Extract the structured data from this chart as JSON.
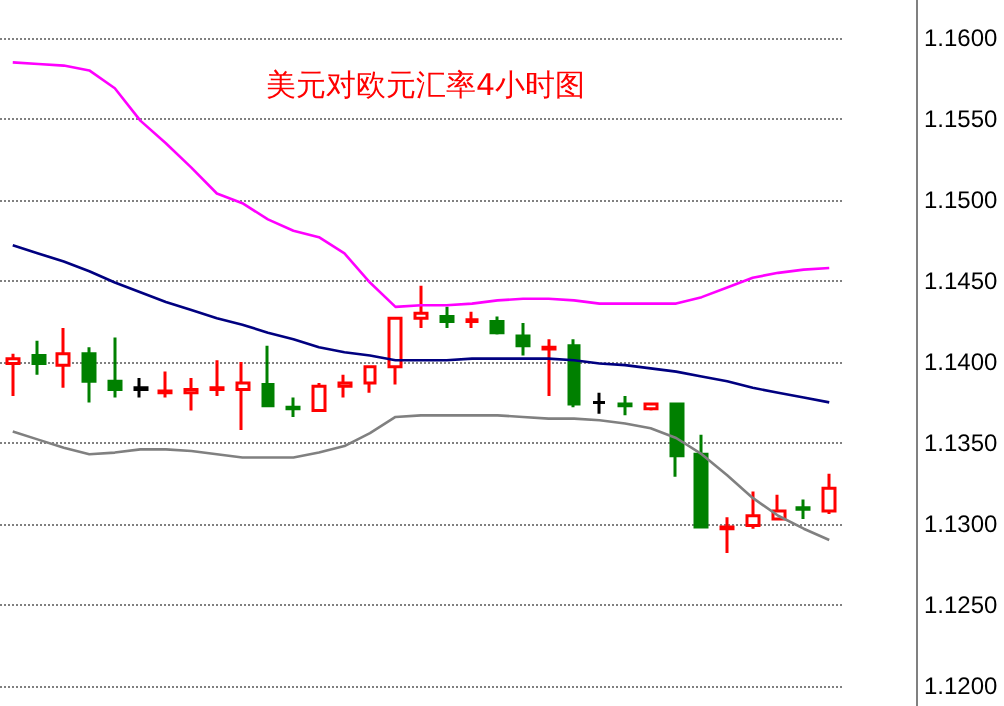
{
  "chart_data": {
    "type": "candlestick",
    "title": "美元对欧元汇率4小时图",
    "categories": [
      null,
      null,
      null,
      null,
      null,
      null,
      null,
      null,
      null,
      null,
      null,
      null,
      null,
      null,
      null,
      null,
      null,
      null,
      null,
      null,
      null,
      null,
      null,
      null,
      null,
      null,
      null,
      null,
      null,
      null,
      null,
      null,
      null
    ],
    "ohlc": [
      [
        1.1399,
        1.1405,
        1.1379,
        1.1402
      ],
      [
        1.1404,
        1.1413,
        1.1392,
        1.1399
      ],
      [
        1.1398,
        1.1421,
        1.1384,
        1.1405
      ],
      [
        1.1405,
        1.1409,
        1.1375,
        1.1388
      ],
      [
        1.1388,
        1.1415,
        1.1378,
        1.1383
      ],
      [
        1.1384,
        1.139,
        1.1378,
        1.1383
      ],
      [
        1.1381,
        1.1394,
        1.1378,
        1.1382
      ],
      [
        1.1381,
        1.139,
        1.137,
        1.1383
      ],
      [
        1.1383,
        1.1401,
        1.1379,
        1.1384
      ],
      [
        1.1383,
        1.14,
        1.1358,
        1.1387
      ],
      [
        1.1386,
        1.141,
        1.1372,
        1.1373
      ],
      [
        1.1372,
        1.1378,
        1.1366,
        1.1371
      ],
      [
        1.137,
        1.1387,
        1.1369,
        1.1385
      ],
      [
        1.1385,
        1.1392,
        1.1378,
        1.1387
      ],
      [
        1.1387,
        1.1397,
        1.1381,
        1.1397
      ],
      [
        1.1397,
        1.1427,
        1.1386,
        1.1427
      ],
      [
        1.1427,
        1.1447,
        1.1421,
        1.143
      ],
      [
        1.1428,
        1.1434,
        1.1421,
        1.1425
      ],
      [
        1.1425,
        1.1431,
        1.1421,
        1.1426
      ],
      [
        1.1425,
        1.1428,
        1.1417,
        1.1418
      ],
      [
        1.1416,
        1.1424,
        1.1404,
        1.141
      ],
      [
        1.1408,
        1.1414,
        1.1379,
        1.1409
      ],
      [
        1.141,
        1.1414,
        1.1372,
        1.1374
      ],
      [
        1.1375,
        1.1381,
        1.1368,
        1.1375
      ],
      [
        1.1374,
        1.1379,
        1.1367,
        1.1373
      ],
      [
        1.1371,
        1.1374,
        1.137,
        1.1374
      ],
      [
        1.1374,
        1.1375,
        1.1329,
        1.1342
      ],
      [
        1.1343,
        1.1355,
        1.1298,
        1.1298
      ],
      [
        1.1297,
        1.1304,
        1.1282,
        1.1298
      ],
      [
        1.1299,
        1.132,
        1.1297,
        1.1305
      ],
      [
        1.1303,
        1.1318,
        1.1303,
        1.1308
      ],
      [
        1.131,
        1.1315,
        1.1303,
        1.1309
      ],
      [
        1.1308,
        1.1331,
        1.1306,
        1.1322
      ]
    ],
    "colors": [
      "#ff0000",
      "#008000",
      "#ff0000",
      "#008000",
      "#008000",
      "#000000",
      "#ff0000",
      "#ff0000",
      "#ff0000",
      "#ff0000",
      "#008000",
      "#008000",
      "#ff0000",
      "#ff0000",
      "#ff0000",
      "#ff0000",
      "#ff0000",
      "#008000",
      "#ff0000",
      "#008000",
      "#008000",
      "#ff0000",
      "#008000",
      "#000000",
      "#008000",
      "#ff0000",
      "#008000",
      "#008000",
      "#ff0000",
      "#ff0000",
      "#ff0000",
      "#008000",
      "#ff0000"
    ],
    "series": [
      {
        "type": "line",
        "color": "#ff00ff",
        "values": [
          1.1585,
          1.1584,
          1.1583,
          1.158,
          1.1569,
          1.1549,
          1.1535,
          1.152,
          1.1504,
          1.1498,
          1.1488,
          1.1481,
          1.1477,
          1.1467,
          1.1449,
          1.1434,
          1.1435,
          1.1435,
          1.1436,
          1.1438,
          1.1439,
          1.1439,
          1.1438,
          1.1436,
          1.1436,
          1.1436,
          1.1436,
          1.144,
          1.1446,
          1.1452,
          1.1455,
          1.1457,
          1.1458
        ]
      },
      {
        "type": "line",
        "color": "#000080",
        "values": [
          1.1472,
          1.1467,
          1.1462,
          1.1456,
          1.1449,
          1.1443,
          1.1437,
          1.1432,
          1.1427,
          1.1423,
          1.1418,
          1.1414,
          1.1409,
          1.1406,
          1.1404,
          1.1401,
          1.1401,
          1.1401,
          1.1402,
          1.1402,
          1.1402,
          1.1402,
          1.1401,
          1.1399,
          1.1398,
          1.1396,
          1.1394,
          1.1391,
          1.1388,
          1.1384,
          1.1381,
          1.1378,
          1.1375
        ]
      },
      {
        "type": "line",
        "color": "#808080",
        "values": [
          1.1357,
          1.1352,
          1.1347,
          1.1343,
          1.1344,
          1.1346,
          1.1346,
          1.1345,
          1.1343,
          1.1341,
          1.1341,
          1.1341,
          1.1344,
          1.1348,
          1.1356,
          1.1366,
          1.1367,
          1.1367,
          1.1367,
          1.1367,
          1.1366,
          1.1365,
          1.1365,
          1.1364,
          1.1362,
          1.1359,
          1.1353,
          1.1343,
          1.133,
          1.1316,
          1.1305,
          1.1297,
          1.129
        ]
      }
    ],
    "ylim": [
      1.11875,
      1.16235
    ],
    "yticks": [
      {
        "value": 1.12,
        "label": "1.1200"
      },
      {
        "value": 1.125,
        "label": "1.1250"
      },
      {
        "value": 1.13,
        "label": "1.1300"
      },
      {
        "value": 1.135,
        "label": "1.1350"
      },
      {
        "value": 1.14,
        "label": "1.1400"
      },
      {
        "value": 1.145,
        "label": "1.1450"
      },
      {
        "value": 1.15,
        "label": "1.1500"
      },
      {
        "value": 1.155,
        "label": "1.1550"
      },
      {
        "value": 1.16,
        "label": "1.1600"
      }
    ],
    "grid": "y",
    "marker": "none"
  }
}
